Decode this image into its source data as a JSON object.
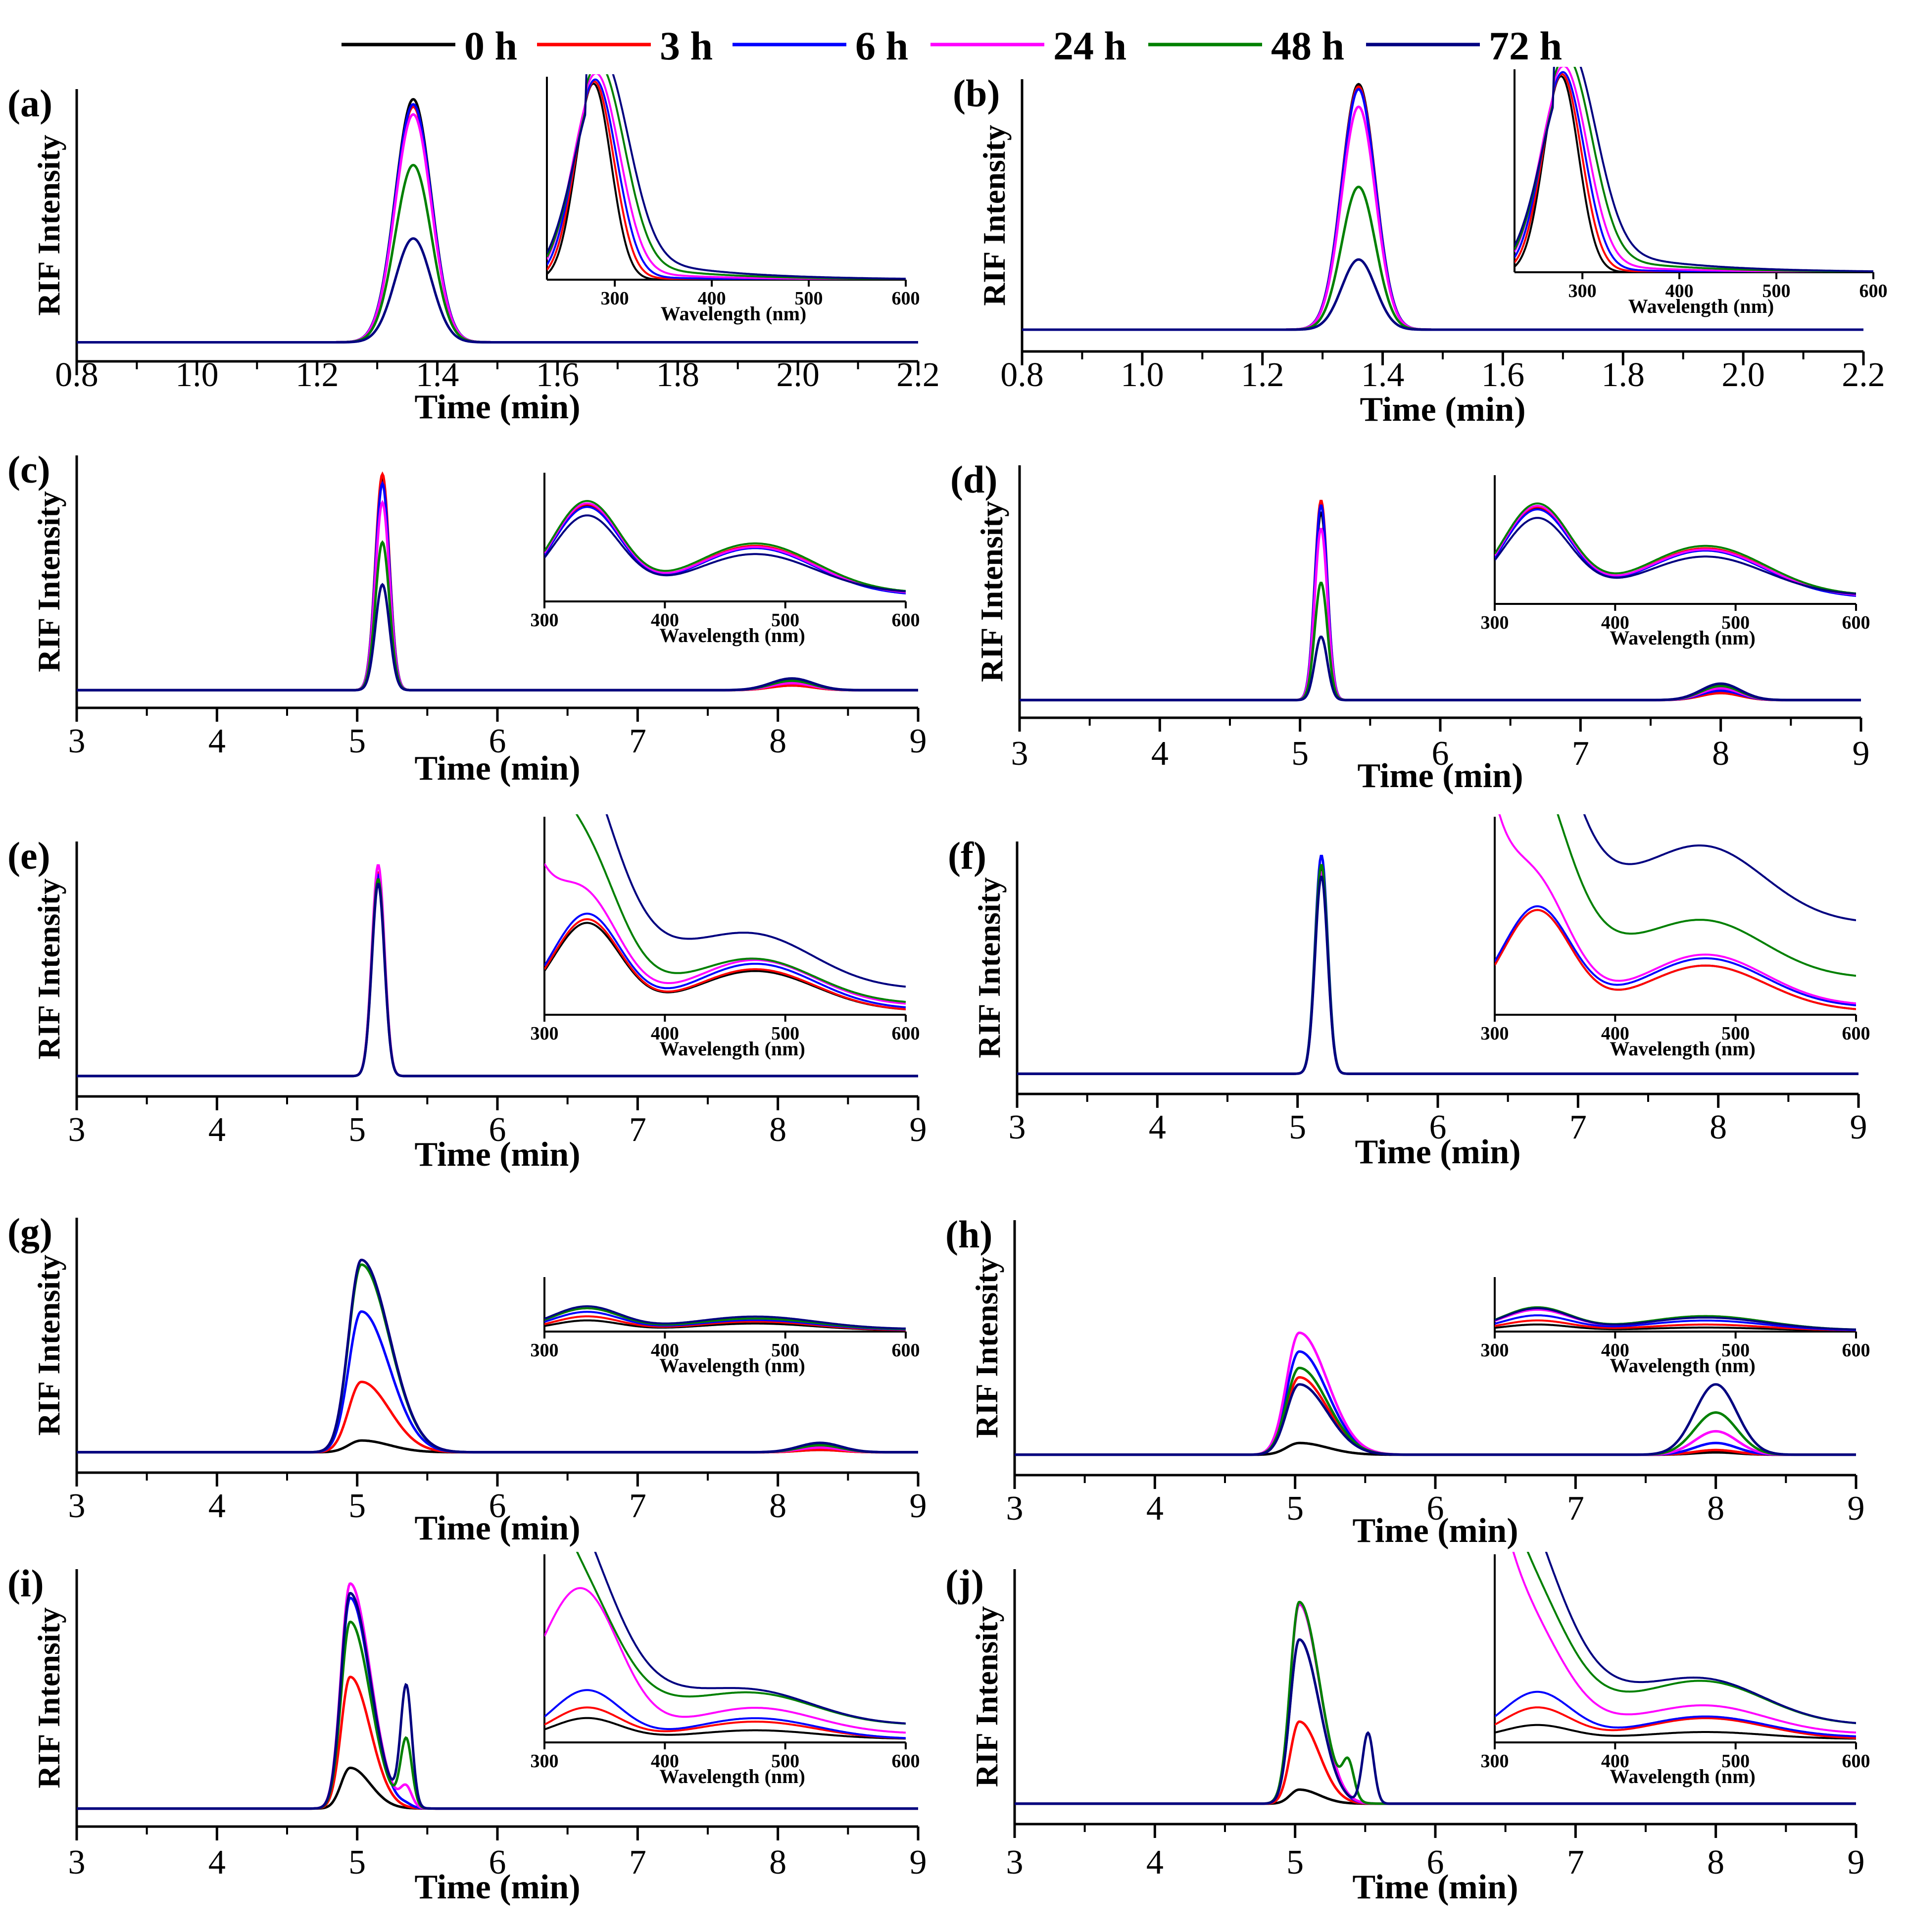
{
  "colors": {
    "0 h": "#000000",
    "3 h": "#ff0000",
    "6 h": "#0000ff",
    "24 h": "#ff00ff",
    "48 h": "#008000",
    "72 h": "#000080"
  },
  "chart_data": {
    "type": "line",
    "legend": [
      "0 h",
      "3 h",
      "6 h",
      "24 h",
      "48 h",
      "72 h"
    ],
    "legend_position": "top-center",
    "panels": [
      {
        "label": "(a)",
        "xlabel": "Time (min)",
        "ylabel": "RIF Intensity",
        "xlim": [
          0.8,
          2.2
        ],
        "xticks": [
          "0.8",
          "1.0",
          "1.2",
          "1.4",
          "1.6",
          "1.8",
          "2.0",
          "2.2"
        ],
        "tickvals": [
          0.8,
          1.0,
          1.2,
          1.4,
          1.6,
          1.8,
          2.0,
          2.2
        ],
        "peaks": [
          {
            "center": 1.36,
            "width": 0.03,
            "heights": [
              0.96,
              0.93,
              0.94,
              0.9,
              0.7,
              0.41
            ]
          }
        ],
        "inset": {
          "xlabel": "Wavelength (nm)",
          "xticks": [
            "300",
            "400",
            "500",
            "600"
          ],
          "type": "uv"
        }
      },
      {
        "label": "(b)",
        "xlabel": "Time (min)",
        "ylabel": "RIF Intensity",
        "xlim": [
          0.8,
          2.2
        ],
        "xticks": [
          "0.8",
          "1.0",
          "1.2",
          "1.4",
          "1.6",
          "1.8",
          "2.0",
          "2.2"
        ],
        "tickvals": [
          0.8,
          1.0,
          1.2,
          1.4,
          1.6,
          1.8,
          2.0,
          2.2
        ],
        "peaks": [
          {
            "center": 1.36,
            "width": 0.028,
            "heights": [
              0.98,
              0.97,
              0.96,
              0.89,
              0.57,
              0.28
            ]
          }
        ],
        "inset": {
          "xlabel": "Wavelength (nm)",
          "xticks": [
            "300",
            "400",
            "500",
            "600"
          ],
          "type": "uv"
        }
      },
      {
        "label": "(c)",
        "xlabel": "Time (min)",
        "ylabel": "RIF Intensity",
        "xlim": [
          3,
          9
        ],
        "xticks": [
          "3",
          "4",
          "5",
          "6",
          "7",
          "8",
          "9"
        ],
        "tickvals": [
          3,
          4,
          5,
          6,
          7,
          8,
          9
        ],
        "peaks": [
          {
            "center": 5.18,
            "width": 0.05,
            "heights": [
              0.9,
              0.92,
              0.88,
              0.8,
              0.63,
              0.45
            ]
          },
          {
            "center": 8.1,
            "width": 0.15,
            "heights": [
              0.02,
              0.02,
              0.03,
              0.03,
              0.04,
              0.05
            ]
          }
        ],
        "inset": {
          "xlabel": "Wavelength (nm)",
          "xticks": [
            "300",
            "400",
            "500",
            "600"
          ],
          "type": "vis"
        }
      },
      {
        "label": "(d)",
        "xlabel": "Time (min)",
        "ylabel": "RIF Intensity",
        "xlim": [
          3,
          9
        ],
        "xticks": [
          "3",
          "4",
          "5",
          "6",
          "7",
          "8",
          "9"
        ],
        "tickvals": [
          3,
          4,
          5,
          6,
          7,
          8,
          9
        ],
        "peaks": [
          {
            "center": 5.15,
            "width": 0.045,
            "heights": [
              0.8,
              0.85,
              0.83,
              0.73,
              0.5,
              0.27
            ]
          },
          {
            "center": 8.0,
            "width": 0.14,
            "heights": [
              0.03,
              0.03,
              0.04,
              0.05,
              0.06,
              0.07
            ]
          }
        ],
        "inset": {
          "xlabel": "Wavelength (nm)",
          "xticks": [
            "300",
            "400",
            "500",
            "600"
          ],
          "type": "vis"
        }
      },
      {
        "label": "(e)",
        "xlabel": "Time (min)",
        "ylabel": "RIF Intensity",
        "xlim": [
          3,
          9
        ],
        "xticks": [
          "3",
          "4",
          "5",
          "6",
          "7",
          "8",
          "9"
        ],
        "tickvals": [
          3,
          4,
          5,
          6,
          7,
          8,
          9
        ],
        "peaks": [
          {
            "center": 5.15,
            "width": 0.045,
            "heights": [
              0.85,
              0.87,
              0.86,
              0.9,
              0.84,
              0.82
            ]
          }
        ],
        "inset": {
          "xlabel": "Wavelength (nm)",
          "xticks": [
            "300",
            "400",
            "500",
            "600"
          ],
          "type": "vis2"
        }
      },
      {
        "label": "(f)",
        "xlabel": "Time (min)",
        "ylabel": "RIF Intensity",
        "xlim": [
          3,
          9
        ],
        "xticks": [
          "3",
          "4",
          "5",
          "6",
          "7",
          "8",
          "9"
        ],
        "tickvals": [
          3,
          4,
          5,
          6,
          7,
          8,
          9
        ],
        "peaks": [
          {
            "center": 5.17,
            "width": 0.045,
            "heights": [
              0.88,
              0.9,
              0.94,
              0.87,
              0.9,
              0.85
            ]
          }
        ],
        "inset": {
          "xlabel": "Wavelength (nm)",
          "xticks": [
            "300",
            "400",
            "500",
            "600"
          ],
          "type": "vis3"
        }
      },
      {
        "label": "(g)",
        "xlabel": "Time (min)",
        "ylabel": "RIF Intensity",
        "xlim": [
          3,
          9
        ],
        "xticks": [
          "3",
          "4",
          "5",
          "6",
          "7",
          "8",
          "9"
        ],
        "tickvals": [
          3,
          4,
          5,
          6,
          7,
          8,
          9
        ],
        "peaks": [
          {
            "center": 5.03,
            "width": 0.07,
            "heights": [
              0.05,
              0.3,
              0.6,
              0.82,
              0.8,
              0.82
            ]
          },
          {
            "center": 8.3,
            "width": 0.15,
            "heights": [
              0.01,
              0.01,
              0.03,
              0.02,
              0.03,
              0.04
            ]
          }
        ],
        "inset": {
          "xlabel": "Wavelength (nm)",
          "xticks": [
            "300",
            "400",
            "500",
            "600"
          ],
          "type": "vis4"
        }
      },
      {
        "label": "(h)",
        "xlabel": "Time (min)",
        "ylabel": "RIF Intensity",
        "xlim": [
          3,
          9
        ],
        "xticks": [
          "3",
          "4",
          "5",
          "6",
          "7",
          "8",
          "9"
        ],
        "tickvals": [
          3,
          4,
          5,
          6,
          7,
          8,
          9
        ],
        "peaks": [
          {
            "center": 5.03,
            "width": 0.07,
            "heights": [
              0.05,
              0.33,
              0.44,
              0.52,
              0.37,
              0.3
            ]
          },
          {
            "center": 8.0,
            "width": 0.15,
            "heights": [
              0.01,
              0.02,
              0.05,
              0.1,
              0.18,
              0.3
            ]
          }
        ],
        "inset": {
          "xlabel": "Wavelength (nm)",
          "xticks": [
            "300",
            "400",
            "500",
            "600"
          ],
          "type": "vis5"
        }
      },
      {
        "label": "(i)",
        "xlabel": "Time (min)",
        "ylabel": "RIF Intensity",
        "xlim": [
          3,
          9
        ],
        "xticks": [
          "3",
          "4",
          "5",
          "6",
          "7",
          "8",
          "9"
        ],
        "tickvals": [
          3,
          4,
          5,
          6,
          7,
          8,
          9
        ],
        "peaks": [
          {
            "center": 4.95,
            "width": 0.05,
            "heights": [
              0.17,
              0.55,
              0.88,
              0.94,
              0.78,
              0.9
            ]
          },
          {
            "center": 5.35,
            "width": 0.04,
            "heights": [
              0.0,
              0.0,
              0.01,
              0.08,
              0.28,
              0.5
            ]
          }
        ],
        "inset": {
          "xlabel": "Wavelength (nm)",
          "xticks": [
            "300",
            "400",
            "500",
            "600"
          ],
          "type": "vis6"
        }
      },
      {
        "label": "(j)",
        "xlabel": "Time (min)",
        "ylabel": "RIF Intensity",
        "xlim": [
          3,
          9
        ],
        "xticks": [
          "3",
          "4",
          "5",
          "6",
          "7",
          "8",
          "9"
        ],
        "tickvals": [
          3,
          4,
          5,
          6,
          7,
          8,
          9
        ],
        "peaks": [
          {
            "center": 5.03,
            "width": 0.05,
            "heights": [
              0.06,
              0.35,
              0.7,
              0.85,
              0.86,
              0.7
            ]
          },
          {
            "center": 5.38,
            "width": 0.04,
            "heights": [
              0.0,
              0.0,
              0.0,
              0.0,
              0.15,
              0.0
            ]
          },
          {
            "center": 5.52,
            "width": 0.04,
            "heights": [
              0.0,
              0.0,
              0.0,
              0.0,
              0.0,
              0.3
            ]
          }
        ],
        "inset": {
          "xlabel": "Wavelength (nm)",
          "xticks": [
            "300",
            "400",
            "500",
            "600"
          ],
          "type": "vis7"
        }
      }
    ]
  }
}
